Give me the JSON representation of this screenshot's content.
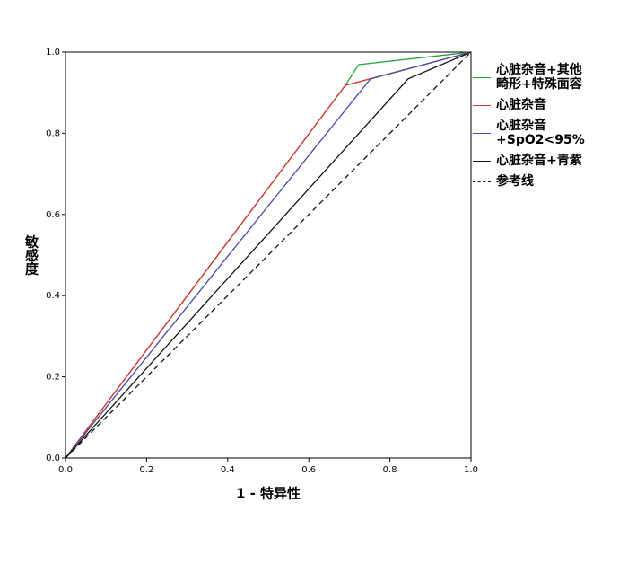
{
  "chart_data": {
    "type": "line",
    "x_label": "1 - 特异性",
    "y_label": "敏感度",
    "xlim": [
      0,
      1
    ],
    "ylim": [
      0,
      1
    ],
    "xticks": [
      {
        "value": 0,
        "label": "0.0"
      },
      0.2,
      0.4,
      0.6,
      0.8,
      {
        "value": 1,
        "label": "1.0"
      }
    ],
    "yticks": [
      {
        "value": 0,
        "label": "0.0"
      },
      0.2,
      0.4,
      0.6,
      0.8,
      {
        "value": 1,
        "label": "1.0"
      }
    ],
    "series": [
      {
        "name": "心脏杂音+其他畸形+特殊面容",
        "color": "#22a33a",
        "x": [
          0,
          0.69,
          0.723,
          1
        ],
        "values": [
          0,
          0.918,
          0.969,
          1
        ]
      },
      {
        "name": "心脏杂音",
        "color": "#e03030",
        "x": [
          0,
          0.69,
          1
        ],
        "values": [
          0,
          0.918,
          1
        ]
      },
      {
        "name": "心脏杂音+SpO2<95%",
        "color": "#4a4aa8",
        "x": [
          0,
          0.752,
          1
        ],
        "values": [
          0,
          0.934,
          1
        ]
      },
      {
        "name": "心脏杂音+青紫",
        "color": "#111111",
        "x": [
          0,
          0.845,
          1
        ],
        "values": [
          0,
          0.934,
          1
        ]
      },
      {
        "name": "参考线",
        "color": "#111111",
        "dashed": true,
        "x": [
          0,
          1
        ],
        "values": [
          0,
          1
        ]
      }
    ]
  }
}
